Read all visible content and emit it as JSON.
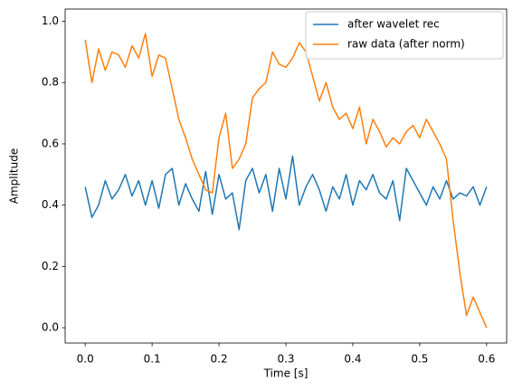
{
  "chart_data": {
    "type": "line",
    "xlabel": "Time [s]",
    "ylabel": "Amplitude",
    "x": [
      0,
      0.01,
      0.02,
      0.03,
      0.04,
      0.05,
      0.06,
      0.07,
      0.08,
      0.09,
      0.1,
      0.11,
      0.12,
      0.13,
      0.14,
      0.15,
      0.16,
      0.17,
      0.18,
      0.19,
      0.2,
      0.21,
      0.22,
      0.23,
      0.24,
      0.25,
      0.26,
      0.27,
      0.28,
      0.29,
      0.3,
      0.31,
      0.32,
      0.33,
      0.34,
      0.35,
      0.36,
      0.37,
      0.38,
      0.39,
      0.4,
      0.41,
      0.42,
      0.43,
      0.44,
      0.45,
      0.46,
      0.47,
      0.48,
      0.49,
      0.5,
      0.51,
      0.52,
      0.53,
      0.54,
      0.55,
      0.56,
      0.57,
      0.58,
      0.59,
      0.6
    ],
    "series": [
      {
        "name": "after wavelet rec",
        "color": "#1f77b4",
        "values": [
          0.46,
          0.36,
          0.4,
          0.48,
          0.42,
          0.45,
          0.5,
          0.43,
          0.48,
          0.4,
          0.48,
          0.39,
          0.5,
          0.52,
          0.4,
          0.47,
          0.42,
          0.38,
          0.51,
          0.37,
          0.5,
          0.42,
          0.44,
          0.32,
          0.48,
          0.52,
          0.44,
          0.5,
          0.38,
          0.52,
          0.42,
          0.56,
          0.4,
          0.46,
          0.5,
          0.45,
          0.38,
          0.46,
          0.42,
          0.5,
          0.4,
          0.48,
          0.45,
          0.5,
          0.44,
          0.42,
          0.48,
          0.35,
          0.52,
          0.48,
          0.44,
          0.4,
          0.46,
          0.42,
          0.48,
          0.42,
          0.44,
          0.43,
          0.46,
          0.4,
          0.46
        ]
      },
      {
        "name": "raw data (after norm)",
        "color": "#ff7f0e",
        "values": [
          0.94,
          0.8,
          0.91,
          0.84,
          0.9,
          0.89,
          0.85,
          0.92,
          0.88,
          0.96,
          0.82,
          0.89,
          0.88,
          0.78,
          0.68,
          0.62,
          0.55,
          0.5,
          0.45,
          0.44,
          0.62,
          0.7,
          0.52,
          0.55,
          0.6,
          0.75,
          0.78,
          0.8,
          0.9,
          0.86,
          0.85,
          0.88,
          0.93,
          0.9,
          0.82,
          0.74,
          0.8,
          0.72,
          0.68,
          0.7,
          0.65,
          0.72,
          0.6,
          0.68,
          0.64,
          0.59,
          0.62,
          0.6,
          0.64,
          0.66,
          0.62,
          0.68,
          0.64,
          0.6,
          0.55,
          0.35,
          0.18,
          0.04,
          0.1,
          0.05,
          0.0
        ]
      }
    ],
    "xlim": [
      -0.03,
      0.63
    ],
    "ylim": [
      -0.05,
      1.04
    ],
    "xticks": [
      {
        "value": 0,
        "label": "0.0"
      },
      0.1,
      0.2,
      0.3,
      0.4,
      0.5,
      0.6
    ],
    "yticks": [
      {
        "value": 0,
        "label": "0.0"
      },
      0.2,
      0.4,
      0.6,
      0.8,
      {
        "value": 1,
        "label": "1.0"
      }
    ],
    "legend": "upper right",
    "grid": false
  }
}
